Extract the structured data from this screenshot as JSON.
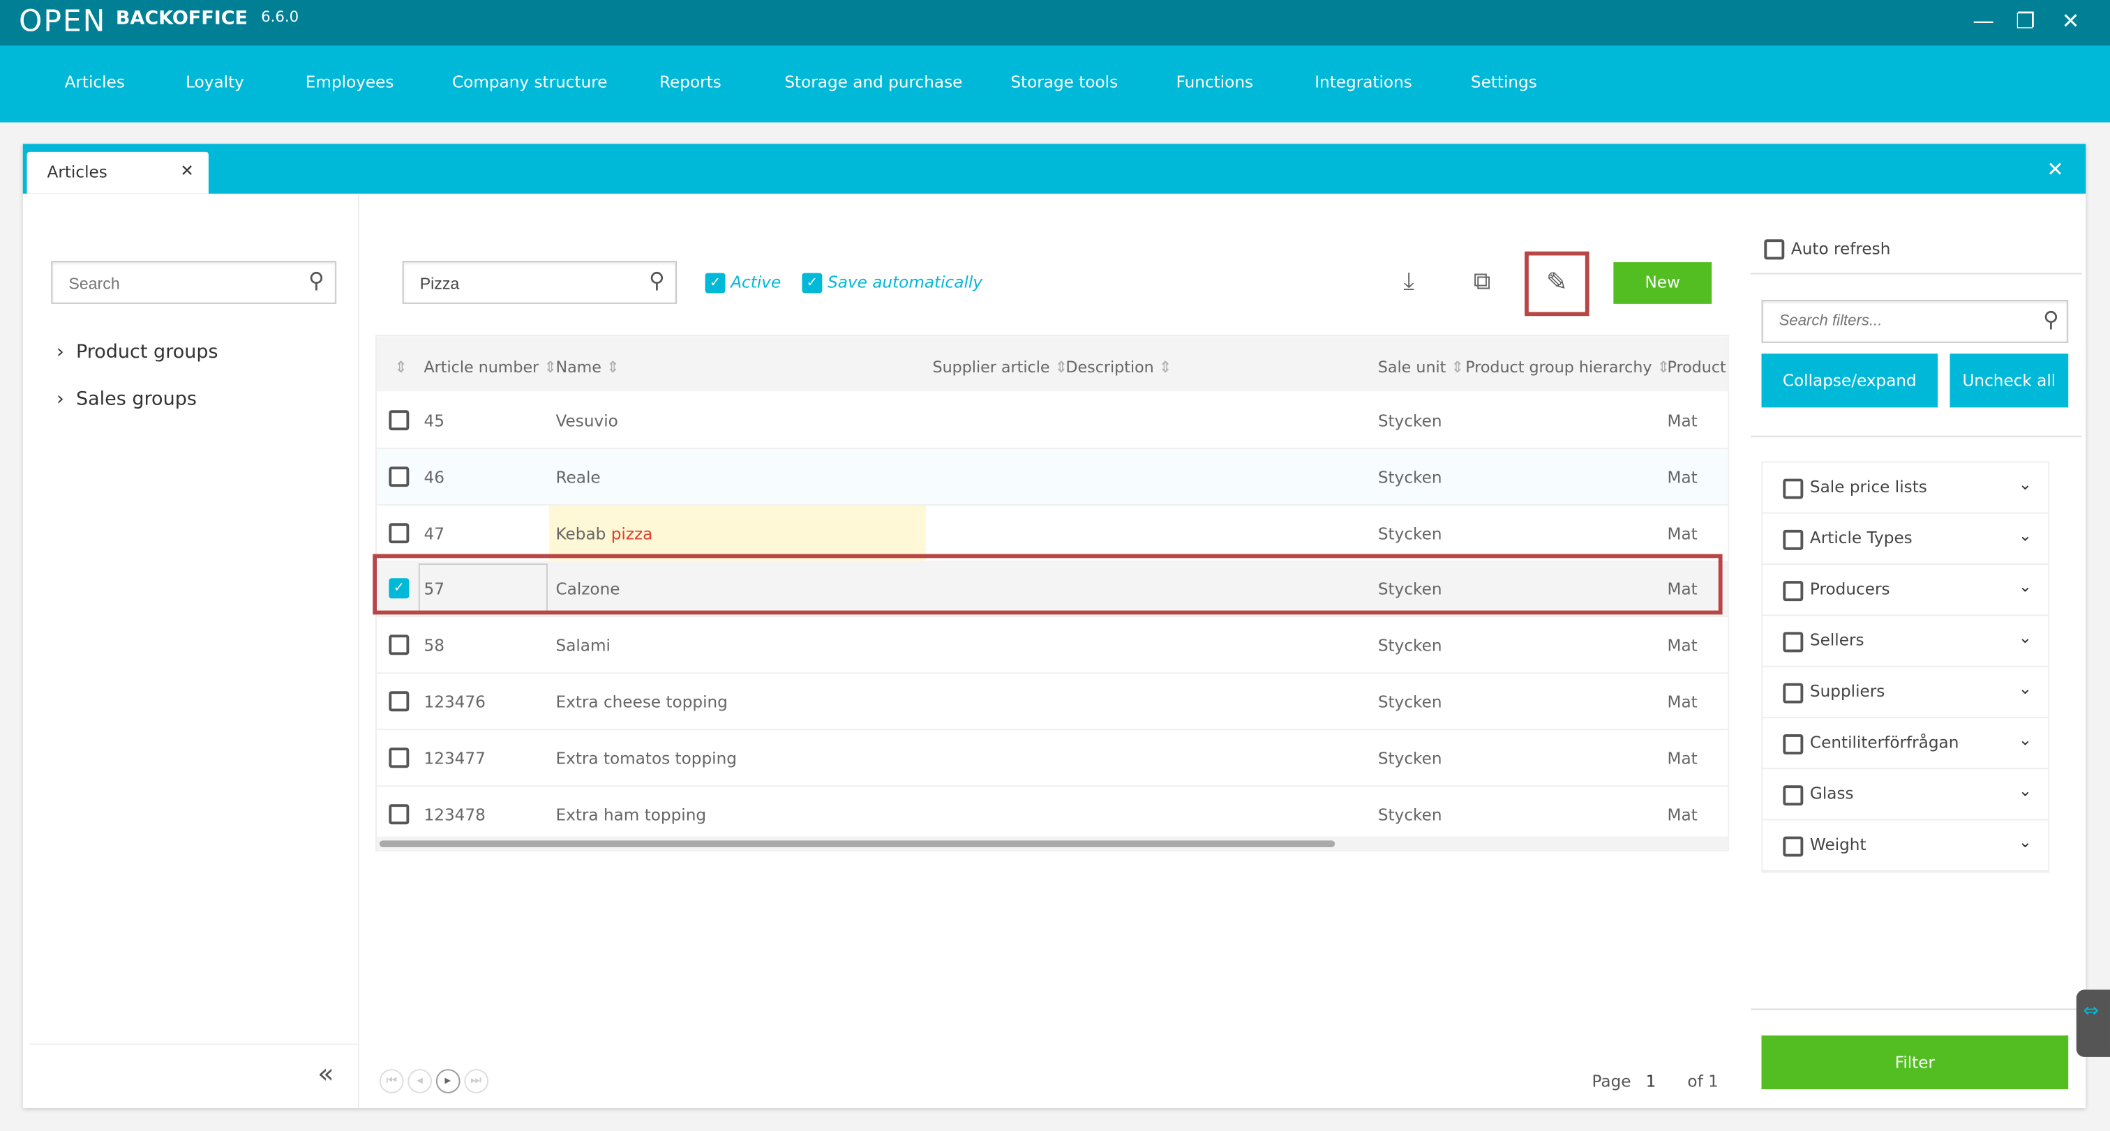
{
  "app": {
    "logo": "OPEN",
    "brand": "BACKOFFICE",
    "version": "6.6.0",
    "minimize": "—",
    "restore": "❐",
    "close": "✕"
  },
  "nav": [
    "Articles",
    "Loyalty",
    "Employees",
    "Company structure",
    "Reports",
    "Storage and purchase",
    "Storage tools",
    "Functions",
    "Integrations",
    "Settings"
  ],
  "tab": {
    "label": "Articles",
    "close": "✕",
    "panel_close": "✕"
  },
  "sidebar": {
    "search_placeholder": "Search",
    "items": [
      {
        "label": "Product groups"
      },
      {
        "label": "Sales groups"
      }
    ],
    "collapse": "«"
  },
  "toolbar": {
    "search_value": "Pizza",
    "active_label": "Active",
    "active_checked": true,
    "save_auto_label": "Save automatically",
    "save_auto_checked": true,
    "new_label": "New"
  },
  "table": {
    "columns": [
      "Article number",
      "Name",
      "Supplier article",
      "Description",
      "Sale unit",
      "Product group hierarchy",
      "Product"
    ],
    "rows": [
      {
        "checked": false,
        "number": "45",
        "name": "Vesuvio",
        "unit": "Stycken",
        "product": "Mat"
      },
      {
        "checked": false,
        "number": "46",
        "name": "Reale",
        "unit": "Stycken",
        "product": "Mat"
      },
      {
        "checked": false,
        "number": "47",
        "name": "Kebab ",
        "name_highlight": "pizza",
        "unit": "Stycken",
        "product": "Mat"
      },
      {
        "checked": true,
        "number": "57",
        "name": "Calzone",
        "unit": "Stycken",
        "product": "Mat"
      },
      {
        "checked": false,
        "number": "58",
        "name": "Salami",
        "unit": "Stycken",
        "product": "Mat"
      },
      {
        "checked": false,
        "number": "123476",
        "name": "Extra cheese topping",
        "unit": "Stycken",
        "product": "Mat"
      },
      {
        "checked": false,
        "number": "123477",
        "name": "Extra tomatos topping",
        "unit": "Stycken",
        "product": "Mat"
      },
      {
        "checked": false,
        "number": "123478",
        "name": "Extra ham topping",
        "unit": "Stycken",
        "product": "Mat"
      }
    ]
  },
  "pager": {
    "page_label": "Page",
    "page": "1",
    "of_label": "of 1"
  },
  "filters": {
    "auto_refresh": "Auto refresh",
    "search_placeholder": "Search filters...",
    "collapse": "Collapse/expand",
    "uncheck": "Uncheck all",
    "items": [
      "Sale price lists",
      "Article Types",
      "Producers",
      "Sellers",
      "Suppliers",
      "Centiliterförfrågan",
      "Glass",
      "Weight"
    ],
    "filter_button": "Filter"
  },
  "colors": {
    "accent": "#00b8d8",
    "titlebar": "#007f95",
    "green": "#52be22",
    "highlight_box": "#b94646",
    "match": "#e53b2c"
  }
}
